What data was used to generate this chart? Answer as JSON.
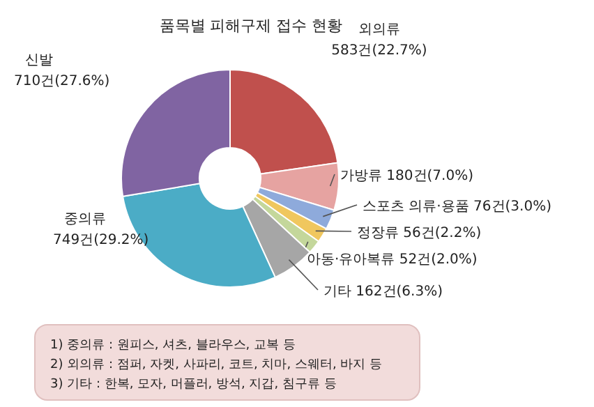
{
  "chart_data": {
    "type": "donut",
    "title": "품목별 피해구제 접수 현황",
    "categories": [
      "외의류",
      "가방류",
      "스포츠 의류·용품",
      "정장류",
      "아동·유아복류",
      "기타",
      "중의류",
      "신발"
    ],
    "values": [
      583,
      180,
      76,
      56,
      52,
      162,
      749,
      710
    ],
    "value_labels": [
      "583건(22.7%)",
      "180건(7.0%)",
      "76건(3.0%)",
      "56건(2.2%)",
      "52건(2.0%)",
      "162건(6.3%)",
      "749건(29.2%)",
      "710건(27.6%)"
    ],
    "colors": [
      "#c0504d",
      "#e6a3a1",
      "#8eaadb",
      "#f0c75e",
      "#c4d79b",
      "#a6a6a6",
      "#4bacc6",
      "#8064a2"
    ],
    "annotations": [
      "1) 중의류 : 원피스, 셔츠, 블라우스, 교복 등",
      "2) 외의류 : 점퍼, 자켓, 사파리, 코트, 치마, 스웨터, 바지 등",
      "3) 기타 : 한복, 모자, 머플러, 방석, 지갑, 침구류 등"
    ]
  }
}
